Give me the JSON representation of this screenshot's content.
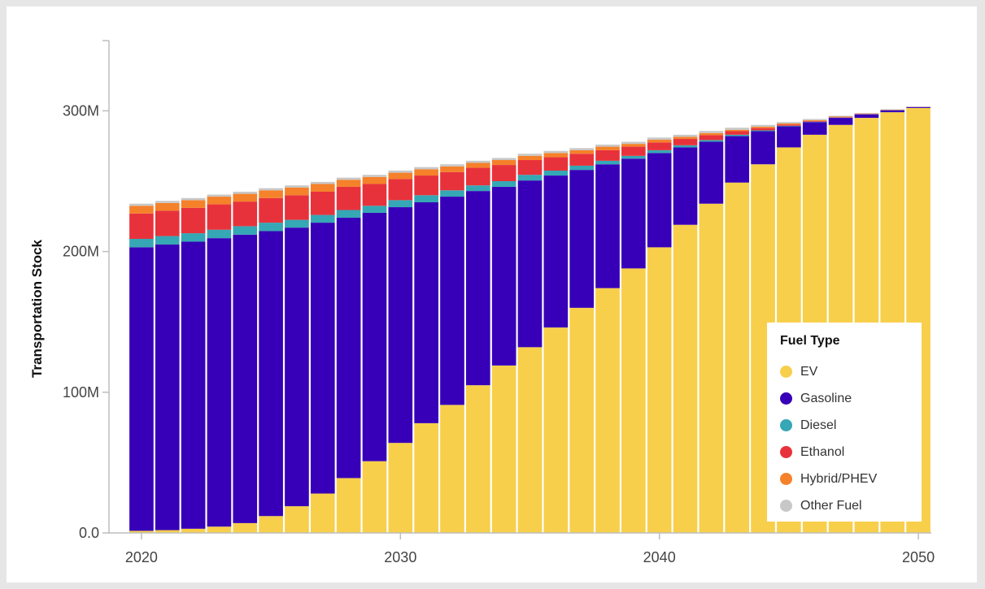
{
  "chart_data": {
    "type": "bar",
    "stacked": true,
    "ylabel": "Transportation Stock",
    "xlabel": "",
    "x_ticks": [
      "2020",
      "2030",
      "2040",
      "2050"
    ],
    "y_ticks": [
      "0.0",
      "100M",
      "200M",
      "300M"
    ],
    "ylim": [
      0,
      350000000
    ],
    "grid": false,
    "legend_position": "bottom-right",
    "legend_title": "Fuel Type",
    "years": [
      2020,
      2021,
      2022,
      2023,
      2024,
      2025,
      2026,
      2027,
      2028,
      2029,
      2030,
      2031,
      2032,
      2033,
      2034,
      2035,
      2036,
      2037,
      2038,
      2039,
      2040,
      2041,
      2042,
      2043,
      2044,
      2045,
      2046,
      2047,
      2048,
      2049,
      2050
    ],
    "series": [
      {
        "name": "EV",
        "color": "#f7cf4b",
        "values": [
          1.5,
          2,
          3,
          4.5,
          7,
          12,
          19,
          28,
          39,
          51,
          64,
          78,
          91,
          105,
          119,
          132,
          146,
          160,
          174,
          188,
          203,
          219,
          234,
          249,
          262,
          274,
          283,
          290,
          295,
          299,
          302
        ]
      },
      {
        "name": "Gasoline",
        "color": "#3700b8",
        "values": [
          201.5,
          203,
          204,
          205,
          205,
          202.5,
          198,
          192.5,
          185,
          176.5,
          167.5,
          157,
          148,
          138,
          127,
          118.5,
          108,
          98,
          88,
          78,
          67,
          55,
          44,
          33,
          23.5,
          15,
          9,
          5,
          2.5,
          1.4,
          0.7
        ]
      },
      {
        "name": "Diesel",
        "color": "#35a7b5",
        "values": [
          6,
          6,
          6,
          6,
          6,
          6,
          5.5,
          5.5,
          5.5,
          5,
          5,
          5,
          4.5,
          4,
          4,
          4,
          3.5,
          3,
          2.5,
          2,
          2,
          1.5,
          1.2,
          1,
          0.6,
          0.4,
          0.3,
          0.2,
          0.1,
          0.1,
          0
        ]
      },
      {
        "name": "Ethanol",
        "color": "#e8323b",
        "values": [
          18,
          18,
          18,
          18,
          17.5,
          17.5,
          17.5,
          16.5,
          16.5,
          15.5,
          15,
          14,
          13,
          12.5,
          11.5,
          10.5,
          9.5,
          8.5,
          7.5,
          6.5,
          5.5,
          4.5,
          3.5,
          2.5,
          1.6,
          0.8,
          0.5,
          0.3,
          0.2,
          0.1,
          0
        ]
      },
      {
        "name": "Hybrid/PHEV",
        "color": "#f5812a",
        "values": [
          5.5,
          5.5,
          5.5,
          5.5,
          5.5,
          5.5,
          5.5,
          5.5,
          5,
          5,
          4.5,
          4.5,
          4,
          3.5,
          3.5,
          3,
          3,
          2.5,
          2.5,
          2,
          2,
          1.5,
          1.5,
          1,
          1,
          0.8,
          0.6,
          0.4,
          0.3,
          0.2,
          0.1
        ]
      },
      {
        "name": "Other Fuel",
        "color": "#c8c8c8",
        "values": [
          1.5,
          1.5,
          1.5,
          1.5,
          1.5,
          1.5,
          1.5,
          1.5,
          1.5,
          1.5,
          1.5,
          1.5,
          1.5,
          1.5,
          1.5,
          1.5,
          1.5,
          1.5,
          1.5,
          1.5,
          1.5,
          1.5,
          1.5,
          1.5,
          1.3,
          1,
          0.8,
          0.6,
          0.4,
          0.3,
          0.2
        ]
      }
    ],
    "value_unit_note": "values in millions"
  }
}
